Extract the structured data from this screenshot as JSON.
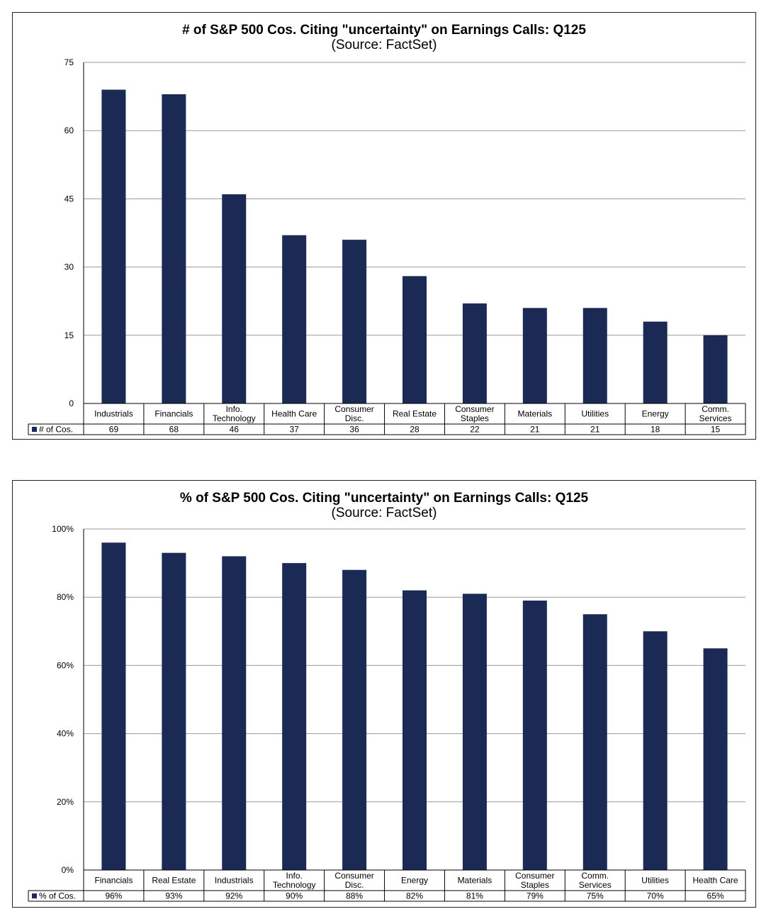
{
  "chart_data": [
    {
      "type": "bar",
      "title": "# of S&P 500 Cos. Citing \"uncertainty\" on Earnings Calls: Q125",
      "subtitle": "(Source: FactSet)",
      "categories": [
        "Industrials",
        "Financials",
        "Info.\nTechnology",
        "Health Care",
        "Consumer\nDisc.",
        "Real Estate",
        "Consumer\nStaples",
        "Materials",
        "Utilities",
        "Energy",
        "Comm.\nServices"
      ],
      "series": [
        {
          "name": "# of Cos.",
          "values": [
            69,
            68,
            46,
            37,
            36,
            28,
            22,
            21,
            21,
            18,
            15
          ],
          "value_labels": [
            "69",
            "68",
            "46",
            "37",
            "36",
            "28",
            "22",
            "21",
            "21",
            "18",
            "15"
          ]
        }
      ],
      "ylim": [
        0,
        75
      ],
      "yticks": [
        0,
        15,
        30,
        45,
        60,
        75
      ],
      "ytick_labels": [
        "0",
        "15",
        "30",
        "45",
        "60",
        "75"
      ],
      "grid": true,
      "legend": "data-table",
      "bar_color": "#1b2a55"
    },
    {
      "type": "bar",
      "title": "% of S&P 500 Cos. Citing \"uncertainty\" on Earnings Calls: Q125",
      "subtitle": "(Source: FactSet)",
      "categories": [
        "Financials",
        "Real Estate",
        "Industrials",
        "Info.\nTechnology",
        "Consumer\nDisc.",
        "Energy",
        "Materials",
        "Consumer\nStaples",
        "Comm.\nServices",
        "Utilities",
        "Health Care"
      ],
      "series": [
        {
          "name": "% of Cos.",
          "values": [
            96,
            93,
            92,
            90,
            88,
            82,
            81,
            79,
            75,
            70,
            65
          ],
          "value_labels": [
            "96%",
            "93%",
            "92%",
            "90%",
            "88%",
            "82%",
            "81%",
            "79%",
            "75%",
            "70%",
            "65%"
          ]
        }
      ],
      "ylim": [
        0,
        100
      ],
      "yticks": [
        0,
        20,
        40,
        60,
        80,
        100
      ],
      "ytick_labels": [
        "0%",
        "20%",
        "40%",
        "60%",
        "80%",
        "100%"
      ],
      "grid": true,
      "legend": "data-table",
      "bar_color": "#1b2a55"
    }
  ]
}
